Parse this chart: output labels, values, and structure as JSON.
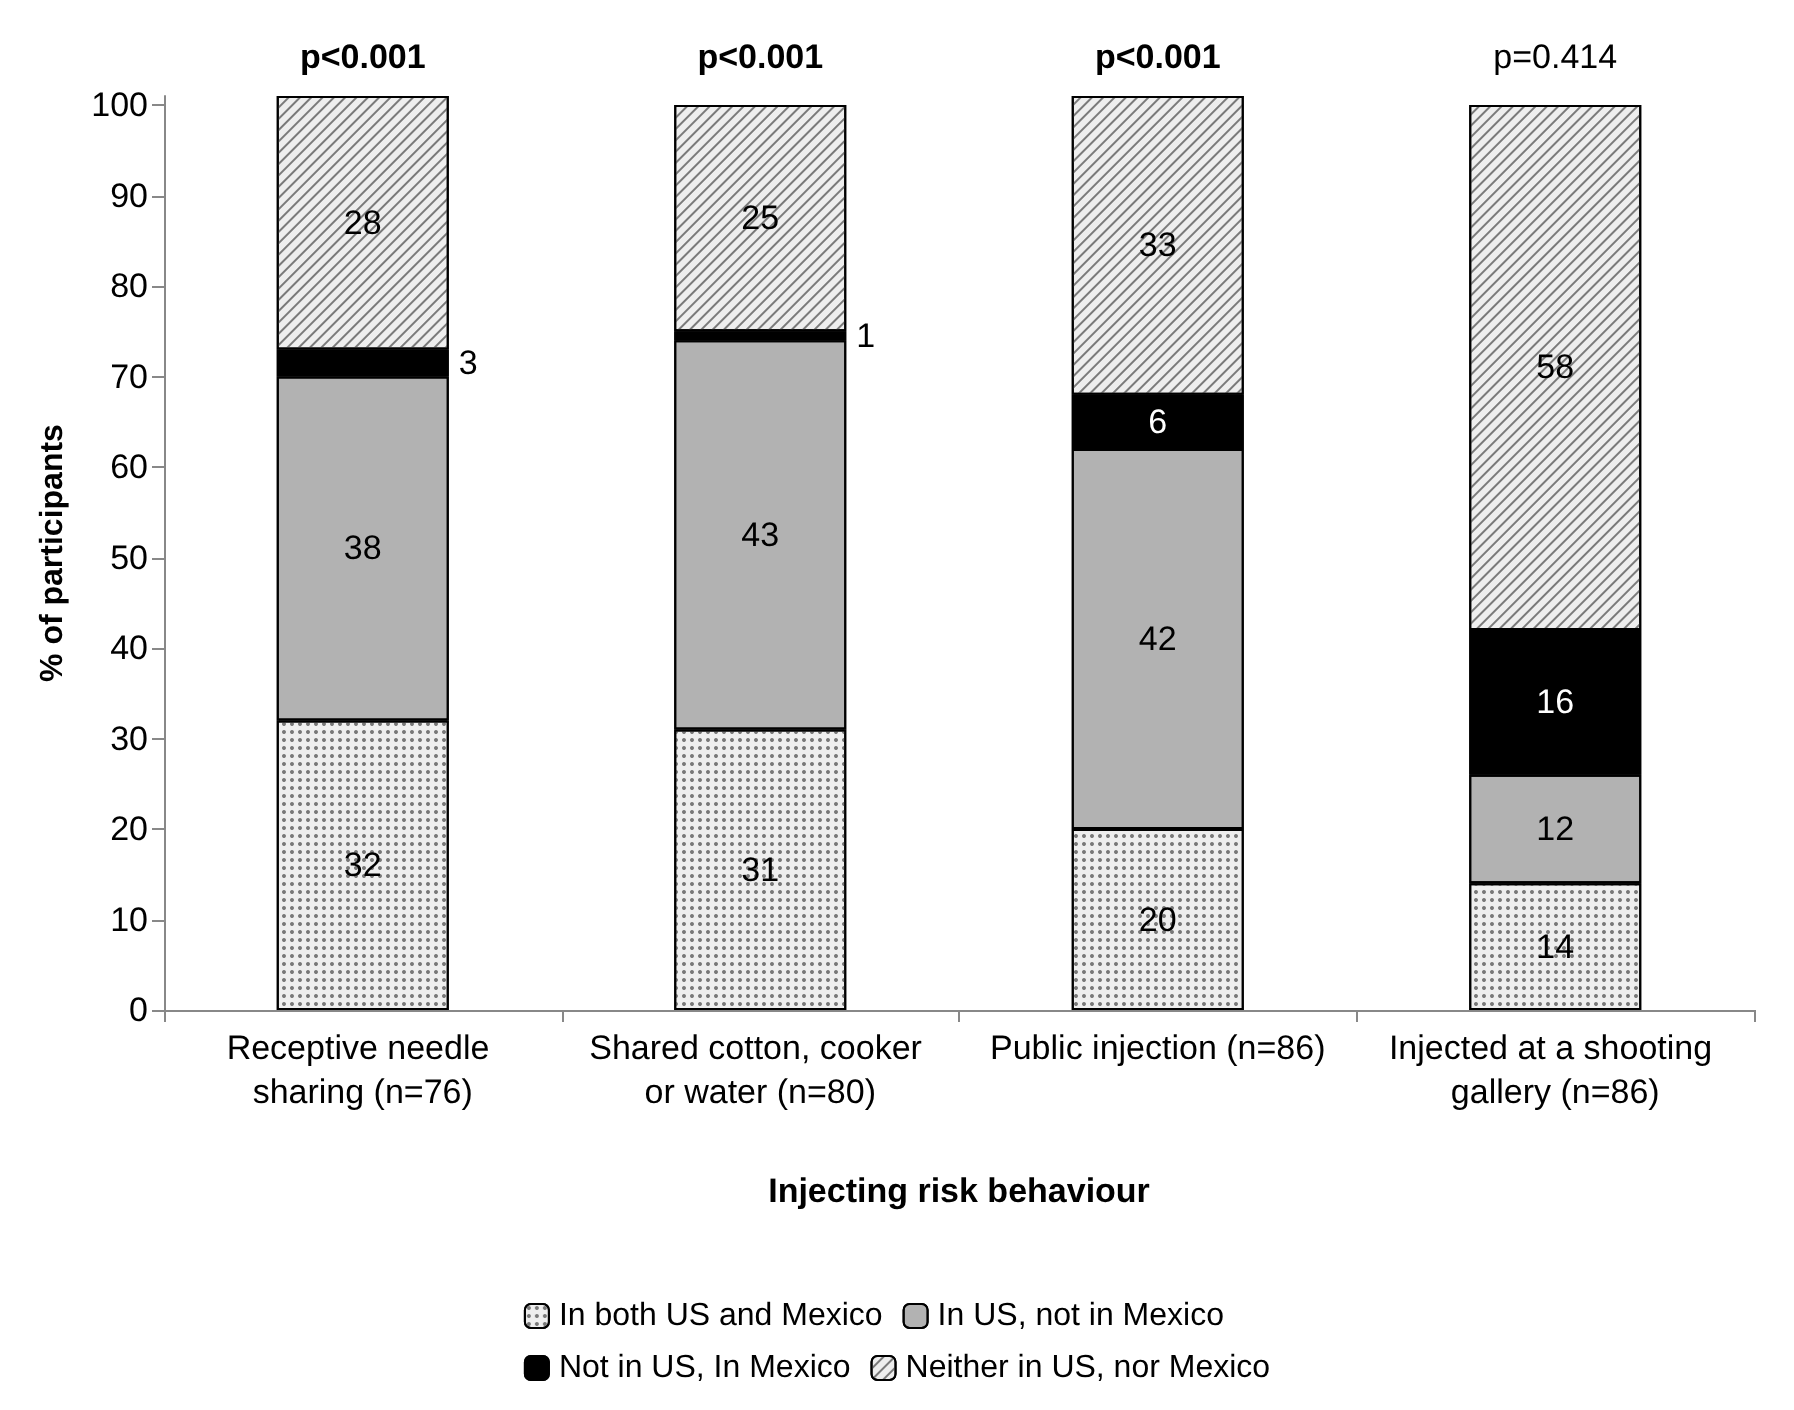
{
  "chart_data": {
    "type": "bar",
    "stacked": true,
    "xlabel": "Injecting risk behaviour",
    "ylabel": "% of participants",
    "categories": [
      "Receptive needle sharing (n=76)",
      "Shared cotton, cooker or water (n=80)",
      "Public injection (n=86)",
      "Injected at a shooting gallery (n=86)"
    ],
    "series": [
      {
        "name": "In both US and Mexico",
        "color": "#eeeeee",
        "values": [
          32,
          31,
          20,
          14
        ],
        "value_labels": [
          "32",
          "31",
          "20",
          "14"
        ]
      },
      {
        "name": "In US, not in Mexico",
        "color": "#b2b2b2",
        "values": [
          38,
          43,
          42,
          12
        ],
        "value_labels": [
          "38",
          "43",
          "42",
          "12"
        ]
      },
      {
        "name": "Not in US, In Mexico",
        "color": "#000000",
        "values": [
          3,
          1,
          6,
          16
        ],
        "value_labels": [
          "3",
          "1",
          "6",
          "16"
        ]
      },
      {
        "name": "Neither in US, nor Mexico",
        "color": "#eeeeee",
        "values": [
          28,
          25,
          33,
          58
        ],
        "value_labels": [
          "28",
          "25",
          "33",
          "58"
        ]
      }
    ],
    "annotations": [
      {
        "text": "p<0.001",
        "x": "Receptive needle sharing (n=76)",
        "y": 100
      },
      {
        "text": "p<0.001",
        "x": "Shared cotton, cooker or water (n=80)",
        "y": 100
      },
      {
        "text": "p<0.001",
        "x": "Public injection (n=86)",
        "y": 100
      },
      {
        "text": "p=0.414",
        "x": "Injected at a shooting gallery (n=86)",
        "y": 100
      }
    ],
    "ylim": [
      0,
      101
    ],
    "yticks": [
      0,
      10,
      20,
      30,
      40,
      50,
      60,
      70,
      80,
      90,
      100
    ],
    "grid": false,
    "legend": "bottom"
  }
}
